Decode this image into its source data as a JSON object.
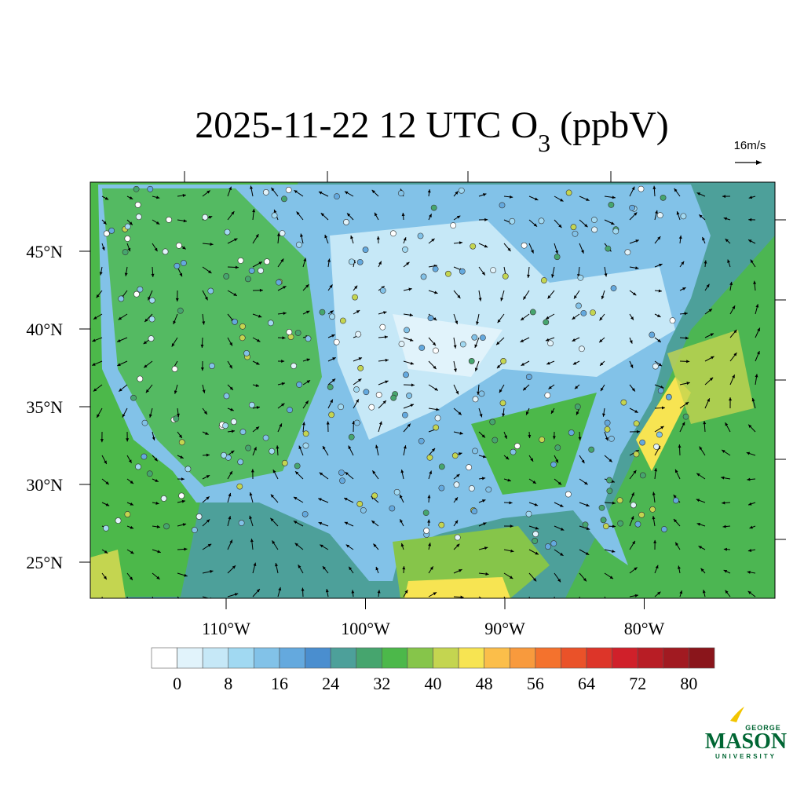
{
  "title": {
    "text": "2025-11-22 12 UTC O",
    "subscript": "3",
    "suffix": " (ppbV)"
  },
  "reference_vector": "16m/s",
  "lat_ticks": [
    {
      "value": 45,
      "label": "45°N"
    },
    {
      "value": 40,
      "label": "40°N"
    },
    {
      "value": 35,
      "label": "35°N"
    },
    {
      "value": 30,
      "label": "30°N"
    },
    {
      "value": 25,
      "label": "25°N"
    }
  ],
  "lon_ticks": [
    {
      "value": -110,
      "label": "110°W"
    },
    {
      "value": -100,
      "label": "100°W"
    },
    {
      "value": -90,
      "label": "90°W"
    },
    {
      "value": -80,
      "label": "80°W"
    }
  ],
  "colorbar": {
    "ticks": [
      0,
      8,
      16,
      24,
      32,
      40,
      48,
      56,
      64,
      72,
      80
    ],
    "colors": [
      "#ffffff",
      "#e1f3fb",
      "#c6e8f7",
      "#a1d9f2",
      "#82c2e8",
      "#64a9de",
      "#4a8ecf",
      "#4da09a",
      "#46a56e",
      "#4cb84a",
      "#86c54a",
      "#c4d550",
      "#f7e452",
      "#fbbe4a",
      "#f89a3d",
      "#f4722d",
      "#ea5229",
      "#dd3529",
      "#d0202a",
      "#b81d25",
      "#a11a21",
      "#8a151b"
    ]
  },
  "logo": {
    "top": "GEORGE",
    "main": "MASON",
    "bottom": "UNIVERSITY"
  }
}
